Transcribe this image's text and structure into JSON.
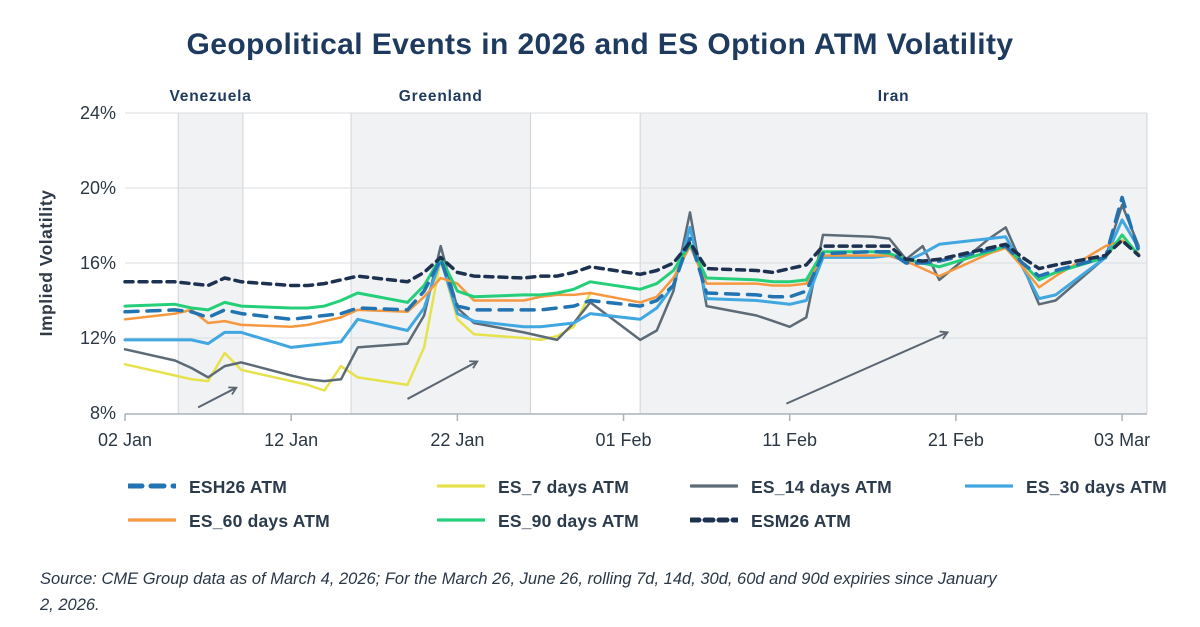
{
  "chart_data": {
    "type": "line",
    "title": "Geopolitical Events in 2026 and ES Option ATM Volatility",
    "ylabel": "Implied Volatility",
    "xlabel": "",
    "ylim": [
      8,
      24
    ],
    "x_axis_unit": "days since 02 Jan 2026",
    "x_range_days": [
      0,
      61.5
    ],
    "grid": "horizontal",
    "y_ticks": [
      {
        "value": 8,
        "label": "8%"
      },
      {
        "value": 12,
        "label": "12%"
      },
      {
        "value": 16,
        "label": "16%"
      },
      {
        "value": 20,
        "label": "20%"
      },
      {
        "value": 24,
        "label": "24%"
      }
    ],
    "x_ticks": [
      {
        "day": 0,
        "label": "02 Jan"
      },
      {
        "day": 10,
        "label": "12 Jan"
      },
      {
        "day": 20,
        "label": "22 Jan"
      },
      {
        "day": 30,
        "label": "01 Feb"
      },
      {
        "day": 40,
        "label": "11 Feb"
      },
      {
        "day": 50,
        "label": "21 Feb"
      },
      {
        "day": 60,
        "label": "03 Mar"
      }
    ],
    "event_bands": [
      {
        "label": "Venezuela",
        "start_day": 3.2,
        "end_day": 7.1,
        "start_date": "05 Jan",
        "end_date": "09 Jan"
      },
      {
        "label": "Greenland",
        "start_day": 13.6,
        "end_day": 24.4,
        "start_date": "16 Jan",
        "end_date": "27 Jan"
      },
      {
        "label": "Iran",
        "start_day": 31.0,
        "end_day": 61.5,
        "start_date": "02 Feb",
        "end_date": "04 Mar"
      }
    ],
    "arrows": [
      {
        "from_day": 4.4,
        "from_pct": 8.3,
        "to_day": 6.7,
        "to_pct": 9.35
      },
      {
        "from_day": 17.0,
        "from_pct": 8.75,
        "to_day": 21.2,
        "to_pct": 10.75
      },
      {
        "from_day": 39.8,
        "from_pct": 8.5,
        "to_day": 49.5,
        "to_pct": 12.3
      }
    ],
    "dates": [
      "02 Jan",
      "05 Jan",
      "06 Jan",
      "07 Jan",
      "08 Jan",
      "09 Jan",
      "12 Jan",
      "13 Jan",
      "14 Jan",
      "15 Jan",
      "16 Jan",
      "19 Jan",
      "20 Jan",
      "21 Jan",
      "22 Jan",
      "23 Jan",
      "26 Jan",
      "27 Jan",
      "28 Jan",
      "29 Jan",
      "30 Jan",
      "02 Feb",
      "03 Feb",
      "04 Feb",
      "05 Feb",
      "06 Feb",
      "09 Feb",
      "10 Feb",
      "11 Feb",
      "12 Feb",
      "13 Feb",
      "16 Feb",
      "17 Feb",
      "18 Feb",
      "19 Feb",
      "20 Feb",
      "23 Feb",
      "24 Feb",
      "25 Feb",
      "26 Feb",
      "27 Feb",
      "02 Mar",
      "03 Mar",
      "04 Mar"
    ],
    "days": [
      0,
      3,
      4,
      5,
      6,
      7,
      10,
      11,
      12,
      13,
      14,
      17,
      18,
      19,
      20,
      21,
      24,
      25,
      26,
      27,
      28,
      31,
      32,
      33,
      34,
      35,
      38,
      39,
      40,
      41,
      42,
      45,
      46,
      47,
      48,
      49,
      52,
      53,
      54,
      55,
      56,
      59,
      60,
      61
    ],
    "series": [
      {
        "name": "ESH26 ATM",
        "color": "#2173b2",
        "dash": "13 9",
        "width": 3.5,
        "values": [
          13.4,
          13.5,
          13.4,
          13.1,
          13.5,
          13.3,
          13.0,
          13.1,
          13.2,
          13.3,
          13.6,
          13.5,
          14.5,
          16.2,
          13.7,
          13.5,
          13.5,
          13.5,
          13.6,
          13.7,
          14.0,
          13.7,
          14.0,
          14.8,
          17.3,
          14.4,
          14.3,
          14.2,
          14.2,
          14.5,
          16.5,
          16.6,
          16.6,
          16.0,
          16.0,
          16.1,
          16.7,
          16.9,
          16.0,
          15.3,
          15.6,
          16.3,
          19.5,
          16.6
        ]
      },
      {
        "name": "ES_7 days ATM",
        "color": "#e6e24c",
        "dash": null,
        "width": 2.5,
        "values": [
          10.6,
          10.0,
          9.8,
          9.7,
          11.2,
          10.3,
          9.7,
          9.5,
          9.2,
          10.5,
          9.9,
          9.5,
          11.5,
          16.2,
          13.0,
          12.2,
          12.0,
          11.9,
          12.1,
          12.6,
          14.4,
          null,
          null,
          null,
          null,
          null,
          null,
          null,
          null,
          null,
          null,
          null,
          null,
          null,
          null,
          null,
          null,
          null,
          null,
          null,
          null,
          null,
          null,
          null
        ]
      },
      {
        "name": "ES_14 days ATM",
        "color": "#5d6b77",
        "dash": null,
        "width": 2.5,
        "values": [
          11.4,
          10.8,
          10.4,
          9.9,
          10.5,
          10.7,
          10.0,
          9.8,
          9.7,
          9.8,
          11.5,
          11.7,
          13.2,
          16.9,
          13.6,
          12.8,
          12.3,
          12.1,
          11.9,
          12.8,
          13.9,
          11.9,
          12.4,
          14.5,
          18.7,
          13.7,
          13.2,
          12.9,
          12.6,
          13.1,
          17.5,
          17.4,
          17.3,
          16.2,
          16.9,
          15.1,
          17.3,
          17.9,
          15.9,
          13.8,
          14.0,
          16.3,
          19.1,
          16.9
        ]
      },
      {
        "name": "ES_30 days ATM",
        "color": "#41a7e1",
        "dash": null,
        "width": 3,
        "values": [
          11.9,
          11.9,
          11.9,
          11.7,
          12.3,
          12.3,
          11.5,
          11.6,
          11.7,
          11.8,
          13.0,
          12.4,
          13.6,
          16.2,
          13.3,
          12.9,
          12.6,
          12.6,
          12.7,
          12.8,
          13.3,
          13.0,
          13.6,
          14.8,
          17.9,
          14.1,
          14.0,
          13.9,
          13.8,
          14.0,
          16.3,
          16.3,
          16.4,
          16.1,
          16.5,
          17.0,
          17.3,
          17.4,
          15.8,
          14.1,
          14.3,
          16.3,
          18.3,
          16.8
        ]
      },
      {
        "name": "ES_60 days ATM",
        "color": "#f5983f",
        "dash": null,
        "width": 2.5,
        "values": [
          13.0,
          13.3,
          13.5,
          12.8,
          12.9,
          12.7,
          12.6,
          12.7,
          12.9,
          13.1,
          13.5,
          13.4,
          14.2,
          15.2,
          14.9,
          14.0,
          14.0,
          14.2,
          14.3,
          14.3,
          14.4,
          13.9,
          14.2,
          15.2,
          16.9,
          14.9,
          14.9,
          14.8,
          14.8,
          14.9,
          16.4,
          16.4,
          16.4,
          16.1,
          15.7,
          15.3,
          16.5,
          16.8,
          15.8,
          14.7,
          15.3,
          16.9,
          17.2,
          16.5
        ]
      },
      {
        "name": "ES_90 days ATM",
        "color": "#25cf79",
        "dash": null,
        "width": 3,
        "values": [
          13.7,
          13.8,
          13.6,
          13.5,
          13.9,
          13.7,
          13.6,
          13.6,
          13.7,
          14.0,
          14.4,
          13.9,
          14.8,
          16.3,
          14.5,
          14.2,
          14.3,
          14.3,
          14.4,
          14.6,
          15.0,
          14.6,
          14.9,
          15.6,
          17.0,
          15.2,
          15.1,
          15.0,
          15.0,
          15.1,
          16.6,
          16.6,
          16.5,
          16.2,
          16.0,
          15.8,
          16.6,
          16.9,
          16.0,
          15.1,
          15.5,
          16.3,
          17.5,
          16.4
        ]
      },
      {
        "name": "ESM26 ATM",
        "color": "#1d3150",
        "dash": "8 6",
        "width": 3.5,
        "values": [
          15.0,
          15.0,
          14.9,
          14.8,
          15.2,
          15.0,
          14.8,
          14.8,
          14.9,
          15.1,
          15.3,
          15.0,
          15.5,
          16.3,
          15.5,
          15.3,
          15.2,
          15.3,
          15.3,
          15.5,
          15.8,
          15.4,
          15.6,
          16.0,
          17.1,
          15.7,
          15.6,
          15.5,
          15.7,
          15.9,
          16.9,
          16.9,
          16.9,
          16.2,
          16.1,
          16.2,
          16.8,
          17.0,
          16.3,
          15.7,
          15.9,
          16.4,
          17.2,
          16.4
        ]
      }
    ],
    "legend_position": "bottom",
    "colors": {
      "title": "#1e3a5f",
      "axis_text": "#2b3844",
      "band_fill": "#f1f2f4",
      "band_edge": "#d0d4d9",
      "gridline": "#d8dde2",
      "axis_line": "#a9b3bc",
      "arrow": "#5b6670"
    }
  },
  "source_note": "Source: CME Group data as of March 4, 2026; For the March 26, June 26, rolling 7d, 14d, 30d, 60d and 90d expiries since January 2, 2026."
}
